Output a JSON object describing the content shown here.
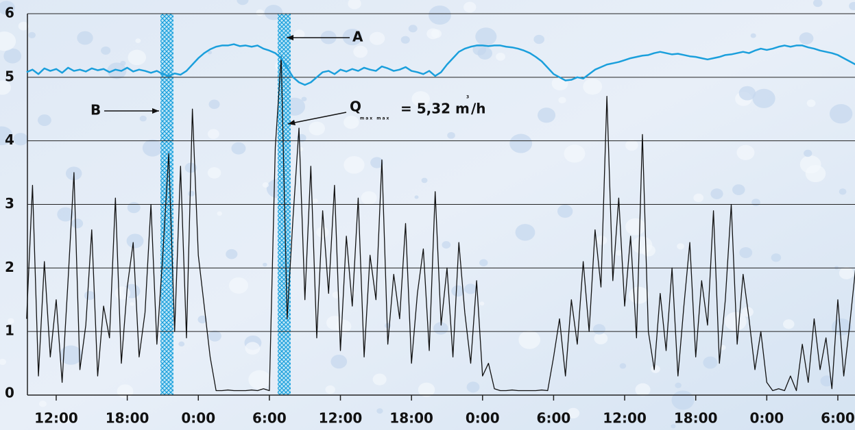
{
  "chart_data": {
    "type": "line",
    "x": [
      9.5,
      10,
      10.5,
      11,
      11.5,
      12,
      12.5,
      13,
      13.5,
      14,
      14.5,
      15,
      15.5,
      16,
      16.5,
      17,
      17.5,
      18,
      18.5,
      19,
      19.5,
      20,
      20.5,
      21,
      21.5,
      22,
      22.5,
      23,
      23.5,
      24,
      24.5,
      25,
      25.5,
      26,
      26.5,
      27,
      27.5,
      28,
      28.5,
      29,
      29.5,
      30,
      30.5,
      31,
      31.5,
      32,
      32.5,
      33,
      33.5,
      34,
      34.5,
      35,
      35.5,
      36,
      36.5,
      37,
      37.5,
      38,
      38.5,
      39,
      39.5,
      40,
      40.5,
      41,
      41.5,
      42,
      42.5,
      43,
      43.5,
      44,
      44.5,
      45,
      45.5,
      46,
      46.5,
      47,
      47.5,
      48,
      48.5,
      49,
      49.5,
      50,
      50.5,
      51,
      51.5,
      52,
      52.5,
      53,
      53.5,
      54,
      54.5,
      55,
      55.5,
      56,
      56.5,
      57,
      57.5,
      58,
      58.5,
      59,
      59.5,
      60,
      60.5,
      61,
      61.5,
      62,
      62.5,
      63,
      63.5,
      64,
      64.5,
      65,
      65.5,
      66,
      66.5,
      67,
      67.5,
      68,
      68.5,
      69,
      69.5,
      70,
      70.5,
      71,
      71.5,
      72,
      72.5,
      73,
      73.5,
      74,
      74.5,
      75,
      75.5,
      76,
      76.5,
      77,
      77.5,
      78,
      78.5,
      79,
      79.5
    ],
    "series": [
      {
        "color": "#1a9fdc",
        "values": [
          5.08,
          5.12,
          5.05,
          5.14,
          5.1,
          5.13,
          5.07,
          5.15,
          5.1,
          5.12,
          5.09,
          5.14,
          5.11,
          5.13,
          5.08,
          5.12,
          5.1,
          5.15,
          5.09,
          5.12,
          5.1,
          5.07,
          5.1,
          5.05,
          5.02,
          5.06,
          5.04,
          5.1,
          5.2,
          5.3,
          5.38,
          5.44,
          5.48,
          5.5,
          5.5,
          5.52,
          5.49,
          5.5,
          5.48,
          5.5,
          5.45,
          5.42,
          5.38,
          5.3,
          5.15,
          5.0,
          4.92,
          4.88,
          4.92,
          5.0,
          5.08,
          5.1,
          5.05,
          5.12,
          5.09,
          5.13,
          5.1,
          5.15,
          5.12,
          5.1,
          5.17,
          5.14,
          5.1,
          5.12,
          5.16,
          5.1,
          5.08,
          5.05,
          5.1,
          5.02,
          5.08,
          5.2,
          5.3,
          5.4,
          5.45,
          5.48,
          5.5,
          5.5,
          5.49,
          5.5,
          5.5,
          5.48,
          5.47,
          5.45,
          5.42,
          5.38,
          5.32,
          5.25,
          5.15,
          5.05,
          5.0,
          4.95,
          4.96,
          5.0,
          4.98,
          5.05,
          5.12,
          5.16,
          5.2,
          5.22,
          5.24,
          5.27,
          5.3,
          5.32,
          5.34,
          5.35,
          5.38,
          5.4,
          5.38,
          5.36,
          5.37,
          5.35,
          5.33,
          5.32,
          5.3,
          5.28,
          5.3,
          5.32,
          5.35,
          5.36,
          5.38,
          5.4,
          5.38,
          5.42,
          5.45,
          5.43,
          5.45,
          5.48,
          5.5,
          5.48,
          5.5,
          5.5,
          5.47,
          5.45,
          5.42,
          5.4,
          5.38,
          5.35,
          5.3,
          5.25,
          5.2
        ]
      },
      {
        "color": "#111111",
        "values": [
          1.2,
          3.3,
          0.3,
          2.1,
          0.6,
          1.5,
          0.2,
          1.8,
          3.5,
          0.4,
          1.1,
          2.6,
          0.3,
          1.4,
          0.9,
          3.1,
          0.5,
          1.7,
          2.4,
          0.6,
          1.3,
          3.0,
          0.8,
          2.2,
          3.8,
          1.0,
          3.6,
          0.9,
          4.5,
          2.2,
          1.4,
          0.6,
          0.07,
          0.07,
          0.08,
          0.07,
          0.07,
          0.07,
          0.08,
          0.07,
          0.1,
          0.07,
          3.9,
          5.32,
          1.2,
          2.8,
          4.2,
          1.5,
          3.6,
          0.9,
          2.9,
          1.6,
          3.3,
          0.7,
          2.5,
          1.4,
          3.1,
          0.6,
          2.2,
          1.5,
          3.7,
          0.8,
          1.9,
          1.2,
          2.7,
          0.5,
          1.6,
          2.3,
          0.7,
          3.2,
          1.1,
          2.0,
          0.6,
          2.4,
          1.3,
          0.5,
          1.8,
          0.3,
          0.5,
          0.1,
          0.07,
          0.07,
          0.08,
          0.07,
          0.07,
          0.07,
          0.07,
          0.08,
          0.07,
          0.6,
          1.2,
          0.3,
          1.5,
          0.8,
          2.1,
          1.0,
          2.6,
          1.7,
          4.7,
          1.8,
          3.1,
          1.4,
          2.5,
          0.9,
          4.1,
          1.0,
          0.4,
          1.6,
          0.7,
          2.0,
          0.3,
          1.4,
          2.4,
          0.6,
          1.8,
          1.1,
          2.9,
          0.5,
          1.5,
          3.0,
          0.8,
          1.9,
          1.2,
          0.4,
          1.0,
          0.2,
          0.07,
          0.1,
          0.07,
          0.3,
          0.07,
          0.8,
          0.2,
          1.2,
          0.4,
          0.9,
          0.1,
          1.5,
          0.3,
          1.1,
          2.0
        ]
      }
    ],
    "bands": [
      [
        20.8,
        21.9
      ],
      [
        30.7,
        31.8
      ]
    ],
    "xlim": [
      9.57,
      79.45
    ],
    "xticks": [
      {
        "value": 12,
        "label": "12:00"
      },
      {
        "value": 18,
        "label": "18:00"
      },
      {
        "value": 24,
        "label": "0:00"
      },
      {
        "value": 30,
        "label": "6:00"
      },
      {
        "value": 36,
        "label": "12:00"
      },
      {
        "value": 42,
        "label": "18:00"
      },
      {
        "value": 48,
        "label": "0:00"
      },
      {
        "value": 54,
        "label": "6:00"
      },
      {
        "value": 60,
        "label": "12:00"
      },
      {
        "value": 66,
        "label": "18:00"
      },
      {
        "value": 72,
        "label": "0:00"
      },
      {
        "value": 78,
        "label": "6:00"
      }
    ],
    "ylim": [
      0,
      6
    ],
    "yticks": [
      0,
      1,
      2,
      3,
      4,
      5,
      6
    ],
    "grid": true,
    "annotations": {
      "a": "A",
      "b": "B",
      "q": "Q",
      "q_sub": "max max",
      "q_value": "= 5,32 m",
      "q_sup": "3",
      "q_unit": "/h"
    }
  }
}
